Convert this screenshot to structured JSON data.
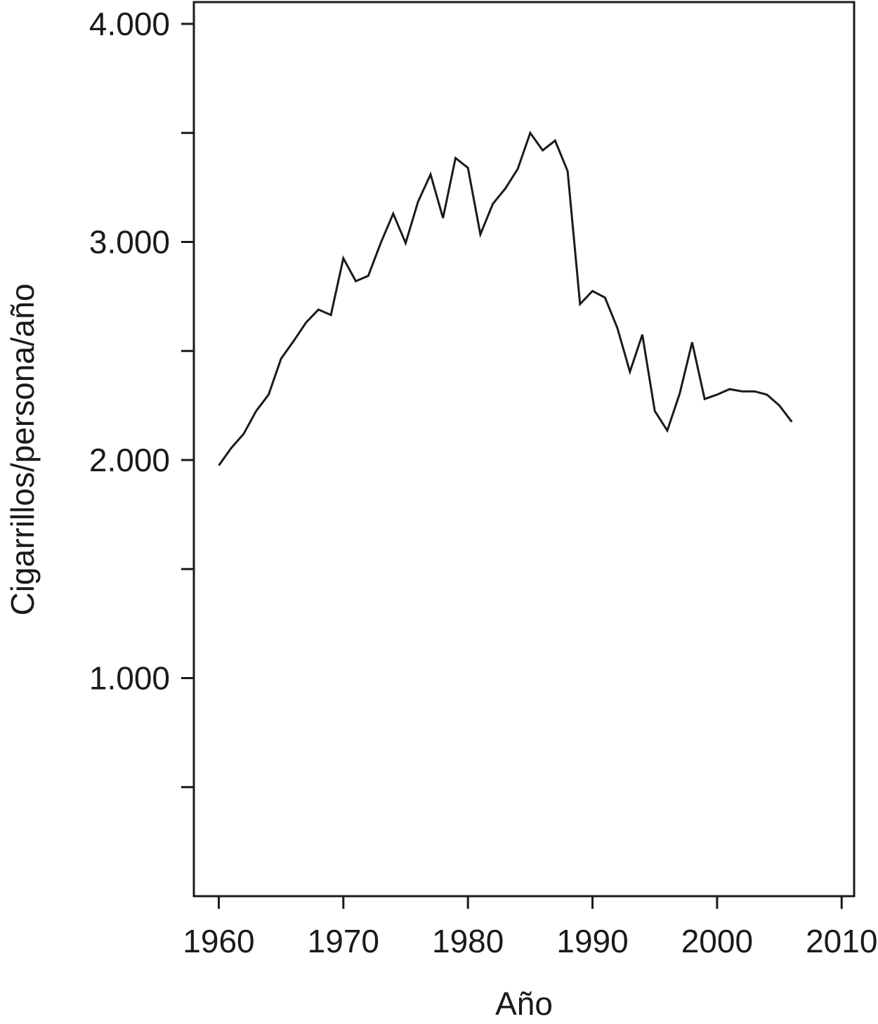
{
  "chart_data": {
    "type": "line",
    "title": "",
    "xlabel": "Año",
    "ylabel": "Cigarrillos/persona/año",
    "xlim": [
      1958,
      2011
    ],
    "ylim": [
      0,
      4100
    ],
    "grid": false,
    "x_ticks": [
      1960,
      1970,
      1980,
      1990,
      2000,
      2010
    ],
    "x_tick_labels": [
      "1960",
      "1970",
      "1980",
      "1990",
      "2000",
      "2010"
    ],
    "y_ticks": [
      500,
      1000,
      1500,
      2000,
      2500,
      3000,
      3500,
      4000
    ],
    "y_tick_labels": [
      "",
      "1.000",
      "",
      "2.000",
      "",
      "3.000",
      "",
      "4.000"
    ],
    "series": [
      {
        "color": "#1a1a1a",
        "x": [
          1960,
          1961,
          1962,
          1963,
          1964,
          1965,
          1966,
          1967,
          1968,
          1969,
          1970,
          1971,
          1972,
          1973,
          1974,
          1975,
          1976,
          1977,
          1978,
          1979,
          1980,
          1981,
          1982,
          1983,
          1984,
          1985,
          1986,
          1987,
          1988,
          1989,
          1990,
          1991,
          1992,
          1993,
          1994,
          1995,
          1996,
          1997,
          1998,
          1999,
          2000,
          2001,
          2002,
          2003,
          2004,
          2005,
          2006
        ],
        "y": [
          1975,
          2055,
          2120,
          2225,
          2300,
          2465,
          2545,
          2630,
          2690,
          2665,
          2925,
          2820,
          2845,
          2995,
          3130,
          2995,
          3185,
          3310,
          3110,
          3385,
          3340,
          3035,
          3175,
          3245,
          3335,
          3500,
          3420,
          3465,
          3325,
          2715,
          2775,
          2745,
          2605,
          2405,
          2575,
          2225,
          2135,
          2305,
          2540,
          2280,
          2300,
          2325,
          2315,
          2315,
          2300,
          2250,
          2175
        ]
      }
    ]
  }
}
